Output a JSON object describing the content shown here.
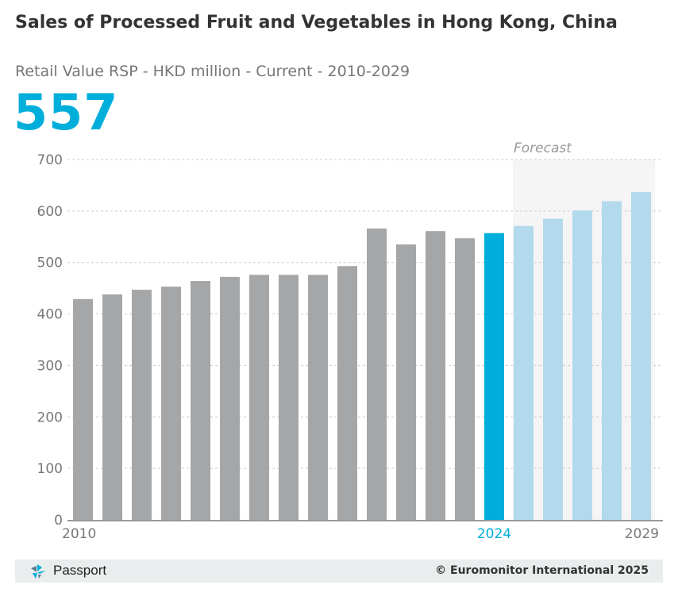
{
  "header": {
    "title": "Sales of Processed Fruit and Vegetables in Hong Kong, China",
    "subtitle": "Retail Value RSP - HKD million - Current - 2010-2029",
    "highlight_value": "557"
  },
  "footer": {
    "brand": "Passport",
    "copyright": "© Euromonitor International 2025"
  },
  "colors": {
    "historic": "#a5a6a8",
    "current": "#00aedb",
    "forecast": "#b3d9ec",
    "forecast_bg": "#f5f5f5",
    "axis": "#999999",
    "grid": "#cccccc",
    "tick_text": "#777777"
  },
  "chart_data": {
    "type": "bar",
    "title": "Sales of Processed Fruit and Vegetables in Hong Kong, China",
    "subtitle": "Retail Value RSP - HKD million - Current - 2010-2029",
    "xlabel": "",
    "ylabel": "",
    "ylim": [
      0,
      700
    ],
    "yticks": [
      0,
      100,
      200,
      300,
      400,
      500,
      600,
      700
    ],
    "grid": true,
    "categories": [
      "2010",
      "2011",
      "2012",
      "2013",
      "2014",
      "2015",
      "2016",
      "2017",
      "2018",
      "2019",
      "2020",
      "2021",
      "2022",
      "2023",
      "2024",
      "2025",
      "2026",
      "2027",
      "2028",
      "2029"
    ],
    "values": [
      429,
      438,
      447,
      453,
      464,
      472,
      476,
      476,
      476,
      493,
      566,
      535,
      561,
      547,
      557,
      571,
      585,
      601,
      619,
      637
    ],
    "x_tick_labels": [
      "2010",
      "2024",
      "2029"
    ],
    "current_year": "2024",
    "forecast_label": "Forecast",
    "forecast_start": "2025"
  }
}
